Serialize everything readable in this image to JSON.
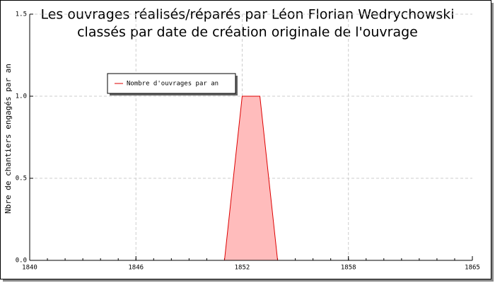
{
  "chart_data": {
    "type": "area",
    "title": "Les ouvrages réalisés/réparés par Léon Florian Wedrychowski",
    "subtitle": "classés par date de création originale de l'ouvrage",
    "y_label": "Nbre de chantiers engagés par an",
    "x": [
      1851,
      1852,
      1853,
      1854
    ],
    "series": [
      {
        "name": "Nombre d'ouvrages par an",
        "color": "#dd0000",
        "values": [
          0,
          1,
          1,
          0
        ]
      }
    ],
    "xlim": [
      1840,
      1865
    ],
    "xticks": [
      1840,
      1846,
      1852,
      1858,
      1865
    ],
    "ylim": [
      0,
      1.5
    ],
    "yticks": [
      {
        "value": 0,
        "label": "0.0"
      },
      0.5,
      {
        "value": 1,
        "label": "1.0"
      },
      1.5
    ],
    "grid": true,
    "legend": "top-left"
  }
}
